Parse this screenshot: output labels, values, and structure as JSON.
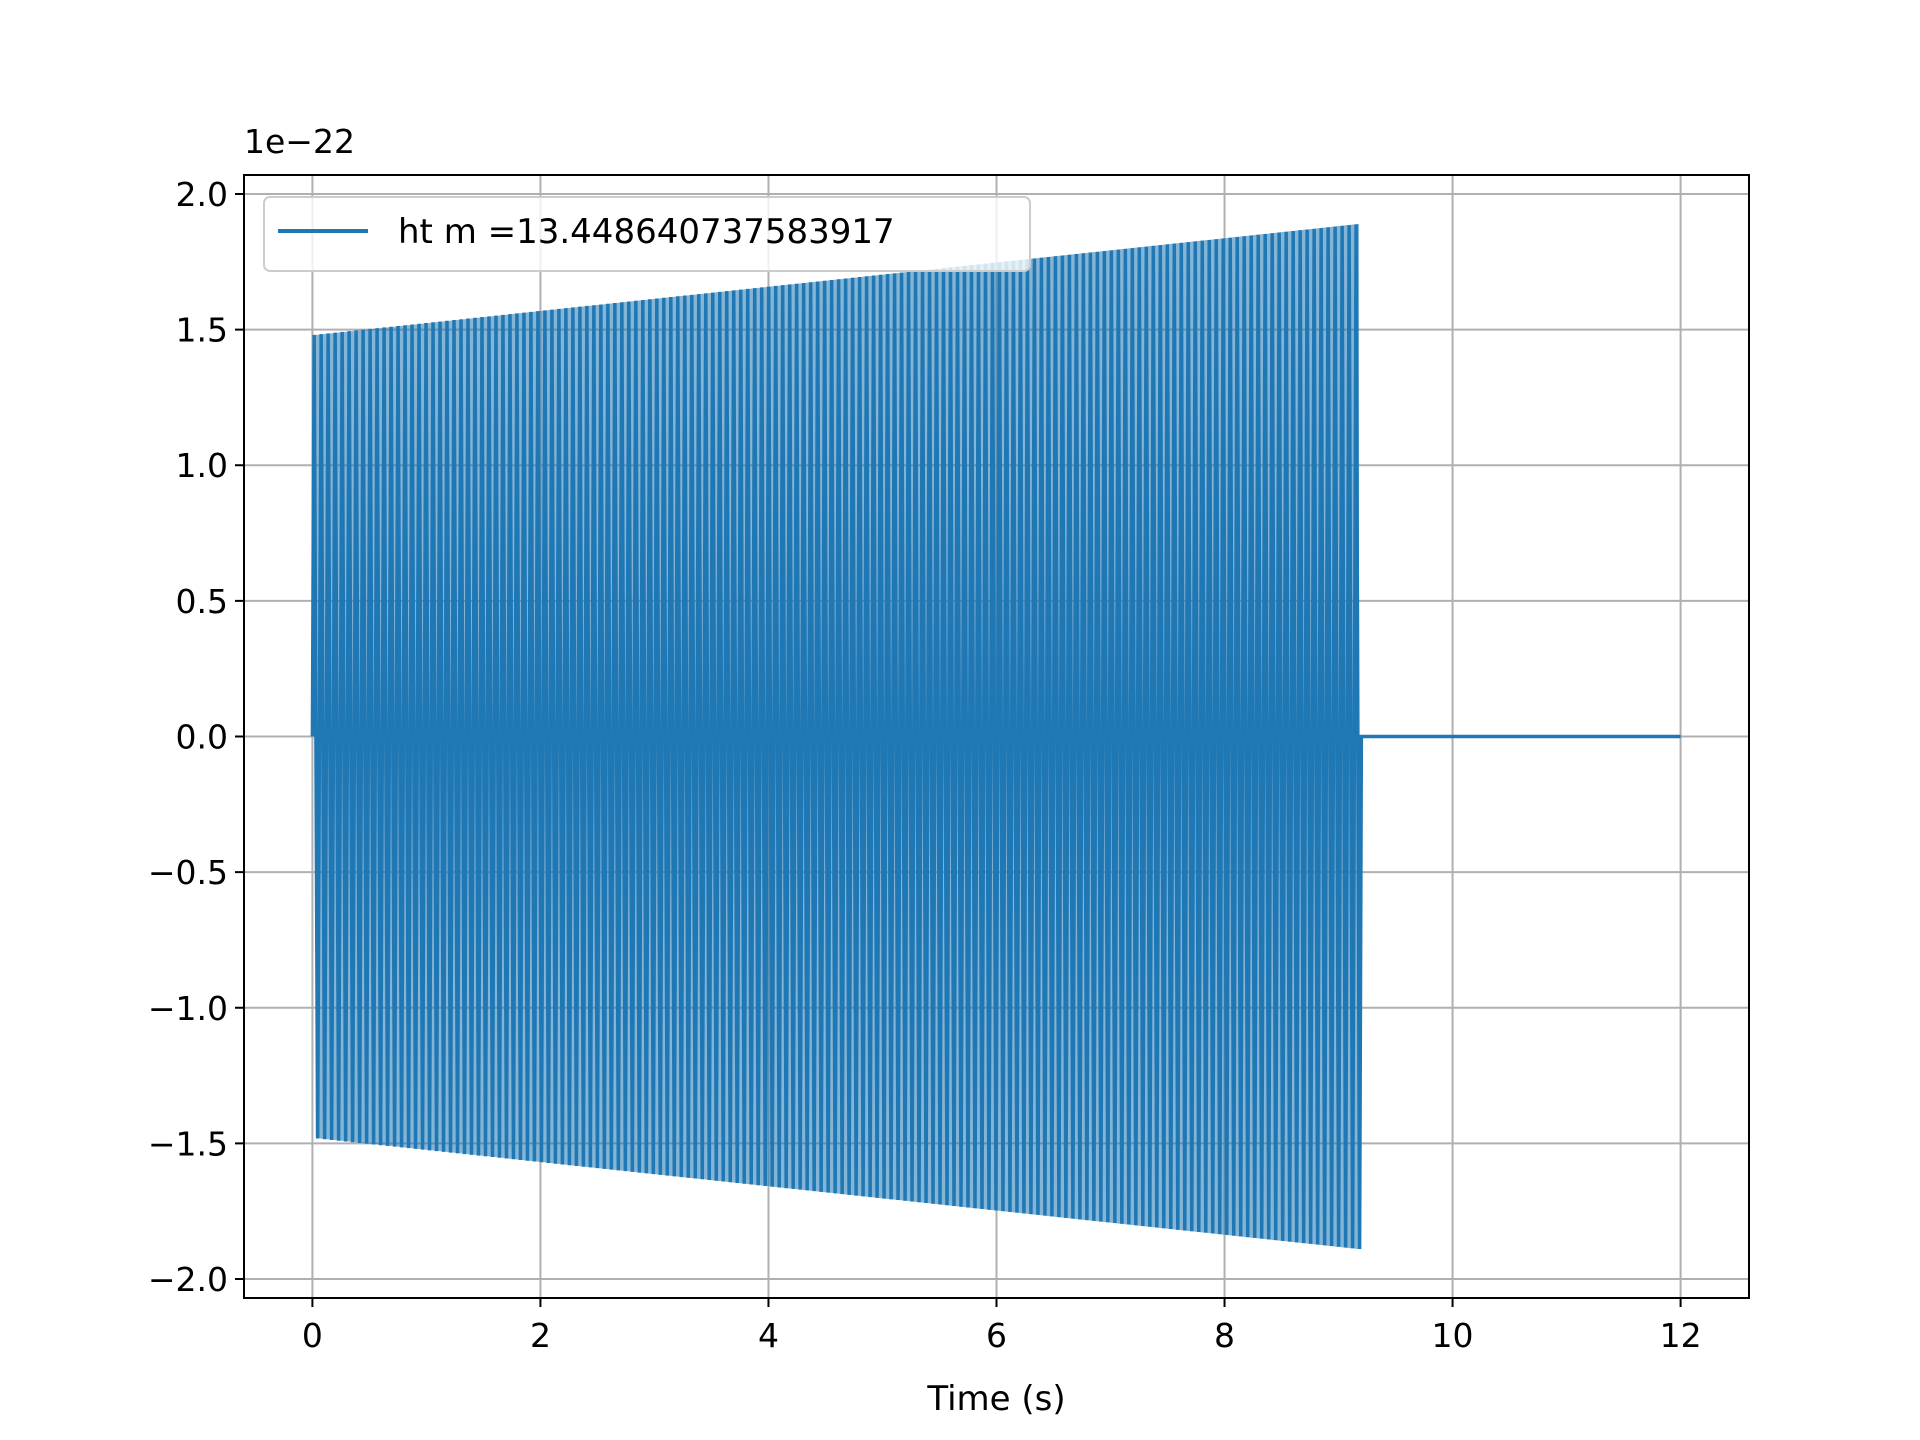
{
  "chart_data": {
    "type": "line",
    "title": "",
    "xlabel": "Time (s)",
    "ylabel": "",
    "y_offset_label": "1e−22",
    "xlim": [
      -0.6,
      12.6
    ],
    "ylim": [
      -2.07,
      2.07
    ],
    "grid": true,
    "legend_position": "top-left",
    "x_ticks": [
      0,
      2,
      4,
      6,
      8,
      10,
      12
    ],
    "x_tick_labels": [
      "0",
      "2",
      "4",
      "6",
      "8",
      "10",
      "12"
    ],
    "y_ticks": [
      2.0,
      1.5,
      1.0,
      0.5,
      0.0,
      -0.5,
      -1.0,
      -1.5,
      -2.0
    ],
    "y_tick_labels": [
      "2.0",
      "1.5",
      "1.0",
      "0.5",
      "0.0",
      "−0.5",
      "−1.0",
      "−1.5",
      "−2.0"
    ],
    "series": [
      {
        "name": "ht m =13.448640737583917",
        "color": "#1f77b4",
        "signal": {
          "start": 0.0,
          "end": 9.2,
          "zero_until": 12.0,
          "envelope_start": 1.48,
          "envelope_end": 1.89,
          "cycles_visible": 150
        }
      }
    ]
  }
}
